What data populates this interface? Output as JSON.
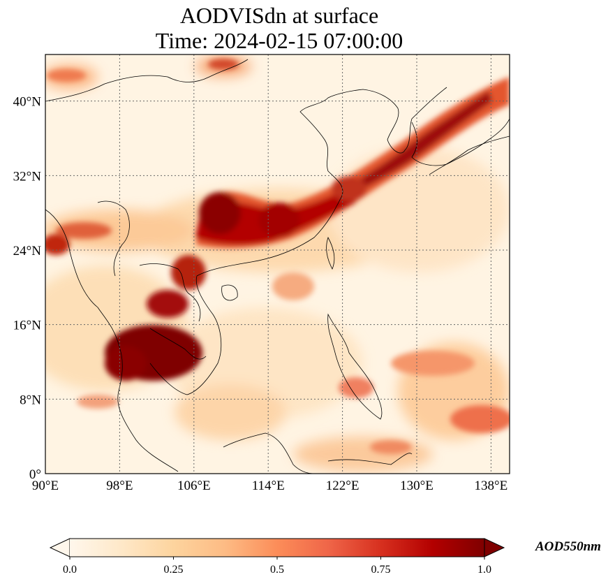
{
  "figure": {
    "title_line_1": "AODVISdn at surface",
    "title_line_2": "Time: 2024-02-15 07:00:00"
  },
  "map": {
    "projection": "PlateCarree",
    "lon_range": [
      90,
      140
    ],
    "lat_range": [
      0,
      45
    ],
    "gridlines": true,
    "lon_ticks": [
      {
        "value": 90,
        "label": "90°E"
      },
      {
        "value": 98,
        "label": "98°E"
      },
      {
        "value": 106,
        "label": "106°E"
      },
      {
        "value": 114,
        "label": "114°E"
      },
      {
        "value": 122,
        "label": "122°E"
      },
      {
        "value": 130,
        "label": "130°E"
      },
      {
        "value": 138,
        "label": "138°E"
      }
    ],
    "lat_ticks": [
      {
        "value": 0,
        "label": "0°"
      },
      {
        "value": 8,
        "label": "8°N"
      },
      {
        "value": 16,
        "label": "16°N"
      },
      {
        "value": 24,
        "label": "24°N"
      },
      {
        "value": 32,
        "label": "32°N"
      },
      {
        "value": 40,
        "label": "40°N"
      }
    ]
  },
  "colorbar": {
    "label": "AOD550nm",
    "colormap": "OrRd",
    "range": [
      0,
      1
    ],
    "extend": "both",
    "ticks": [
      {
        "value": 0.0,
        "label": "0.0"
      },
      {
        "value": 0.25,
        "label": "0.25"
      },
      {
        "value": 0.5,
        "label": "0.5"
      },
      {
        "value": 0.75,
        "label": "0.75"
      },
      {
        "value": 1.0,
        "label": "1.0"
      }
    ],
    "colors": [
      "#fff7ec",
      "#fee8c8",
      "#fdd49e",
      "#fdbb84",
      "#fc8d59",
      "#ef6548",
      "#d7301f",
      "#b30000",
      "#7f0000"
    ]
  }
}
